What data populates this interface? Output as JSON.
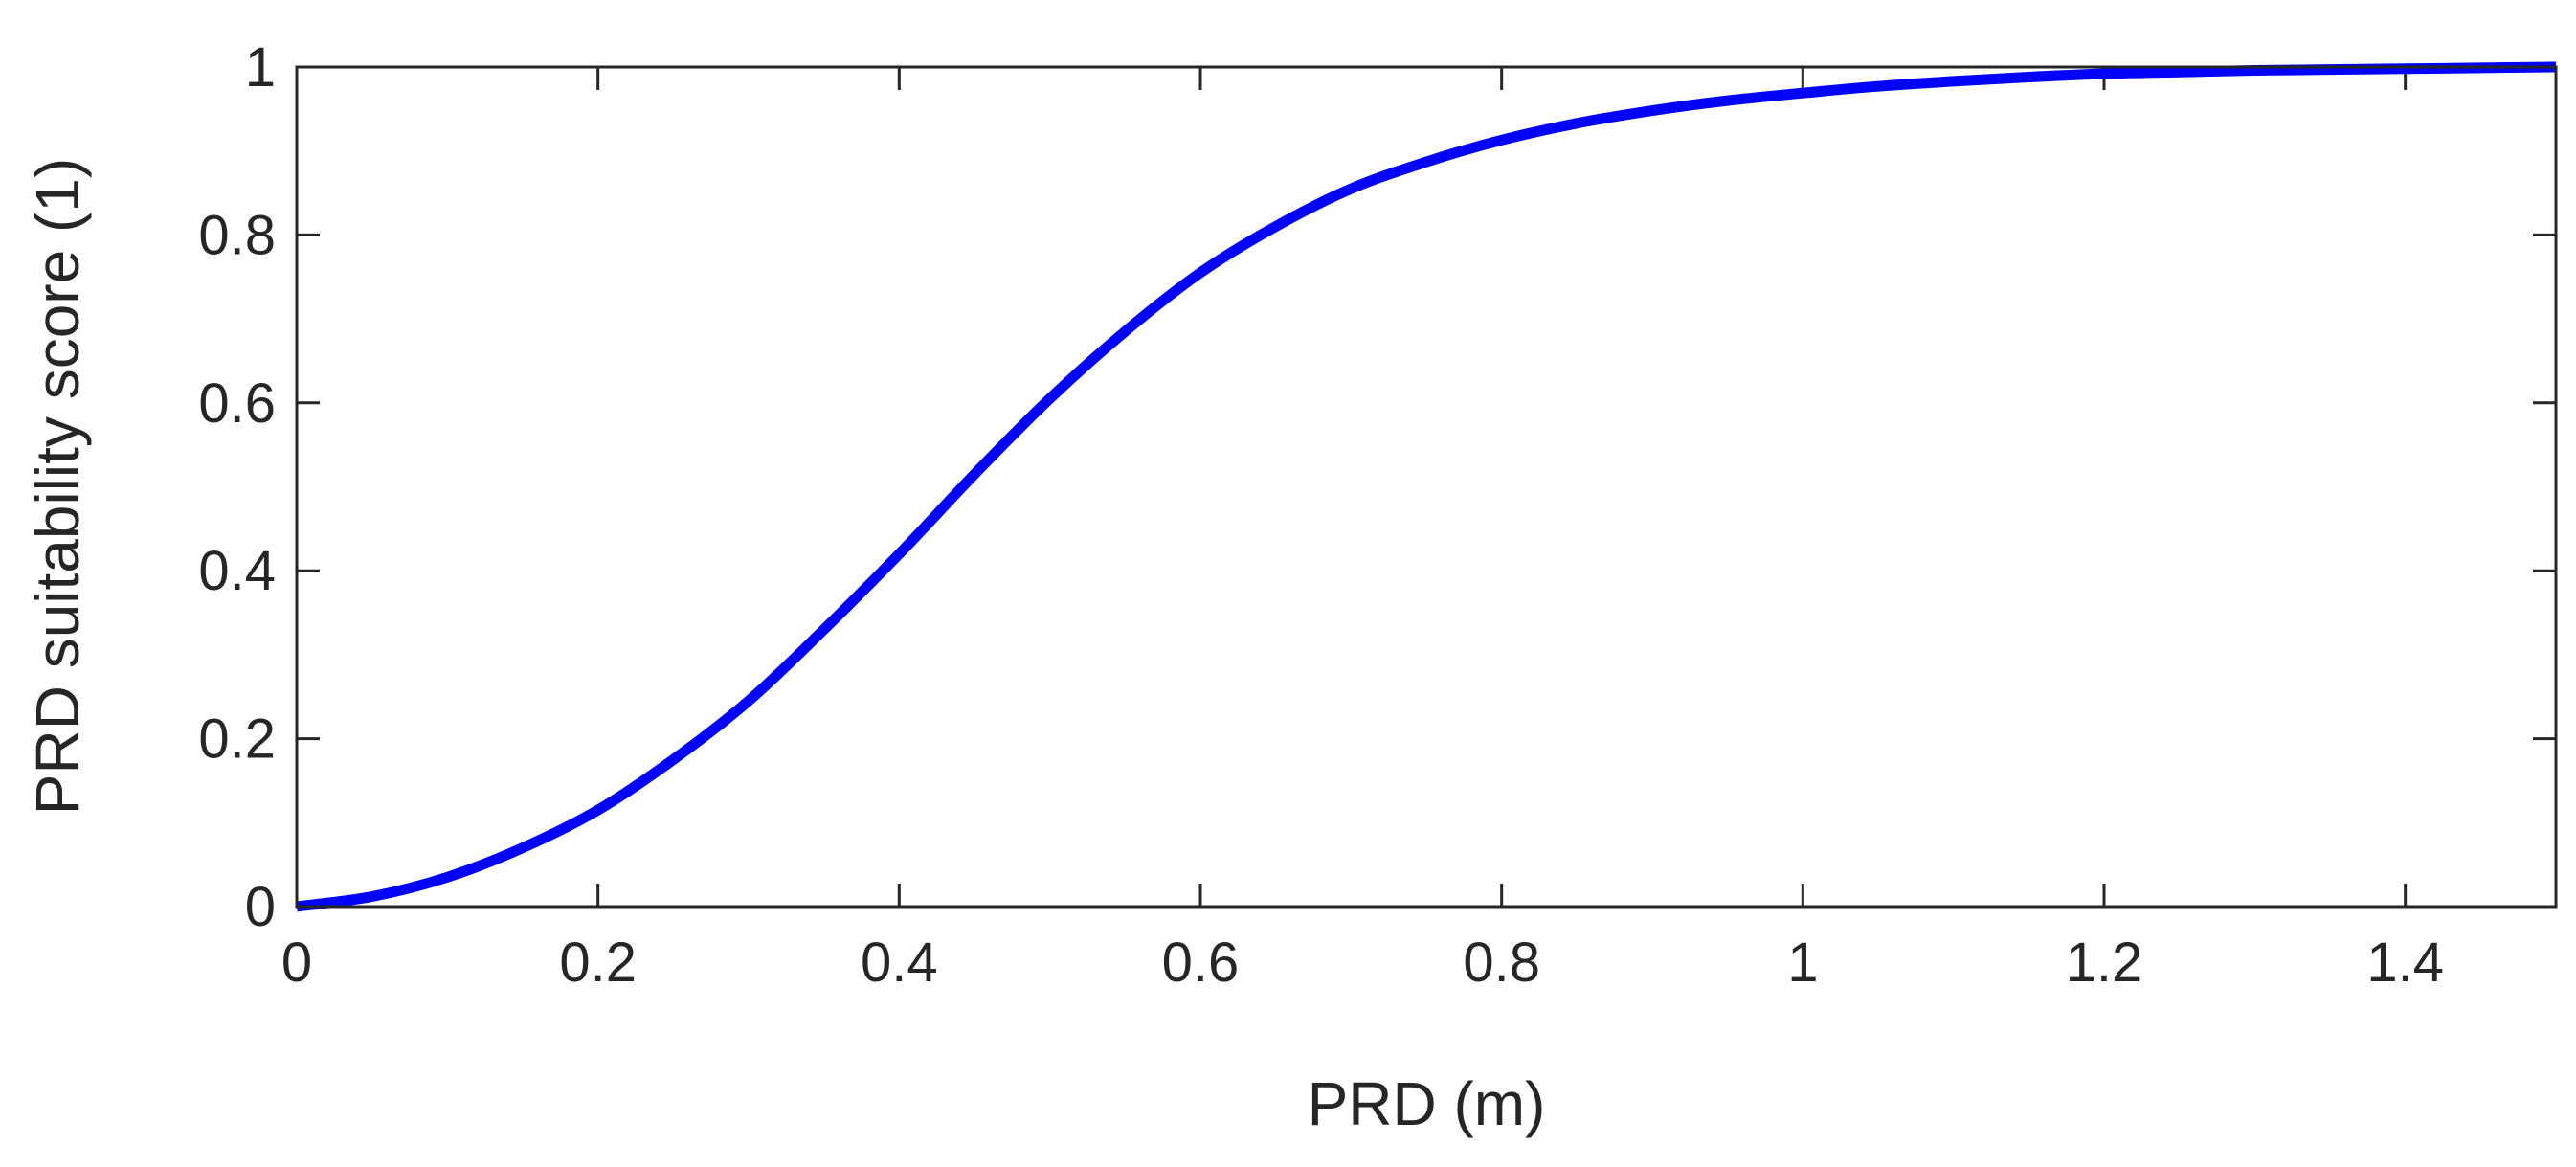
{
  "chart_data": {
    "type": "line",
    "title": "",
    "xlabel": "PRD (m)",
    "ylabel": "PRD suitability score (1)",
    "xlim": [
      0,
      1.5
    ],
    "ylim": [
      0,
      1
    ],
    "xticks": [
      0,
      0.2,
      0.4,
      0.6,
      0.8,
      1,
      1.2,
      1.4
    ],
    "xtick_labels": [
      "0",
      "0.2",
      "0.4",
      "0.6",
      "0.8",
      "1",
      "1.2",
      "1.4"
    ],
    "yticks": [
      0,
      0.2,
      0.4,
      0.6,
      0.8,
      1
    ],
    "ytick_labels": [
      "0",
      "0.2",
      "0.4",
      "0.6",
      "0.8",
      "1"
    ],
    "grid": false,
    "legend": "none",
    "series": [
      {
        "color": "#0000ff",
        "x": [
          0,
          0.05,
          0.1,
          0.15,
          0.2,
          0.25,
          0.3,
          0.35,
          0.4,
          0.45,
          0.5,
          0.55,
          0.6,
          0.65,
          0.7,
          0.75,
          0.8,
          0.85,
          0.9,
          0.95,
          1.0,
          1.05,
          1.1,
          1.15,
          1.2,
          1.25,
          1.3,
          1.35,
          1.4,
          1.45,
          1.5
        ],
        "y": [
          0.0,
          0.012,
          0.035,
          0.07,
          0.115,
          0.175,
          0.245,
          0.33,
          0.42,
          0.515,
          0.605,
          0.685,
          0.755,
          0.81,
          0.855,
          0.887,
          0.913,
          0.933,
          0.948,
          0.96,
          0.969,
          0.977,
          0.983,
          0.988,
          0.992,
          0.994,
          0.996,
          0.997,
          0.998,
          0.999,
          1.0
        ]
      }
    ]
  }
}
